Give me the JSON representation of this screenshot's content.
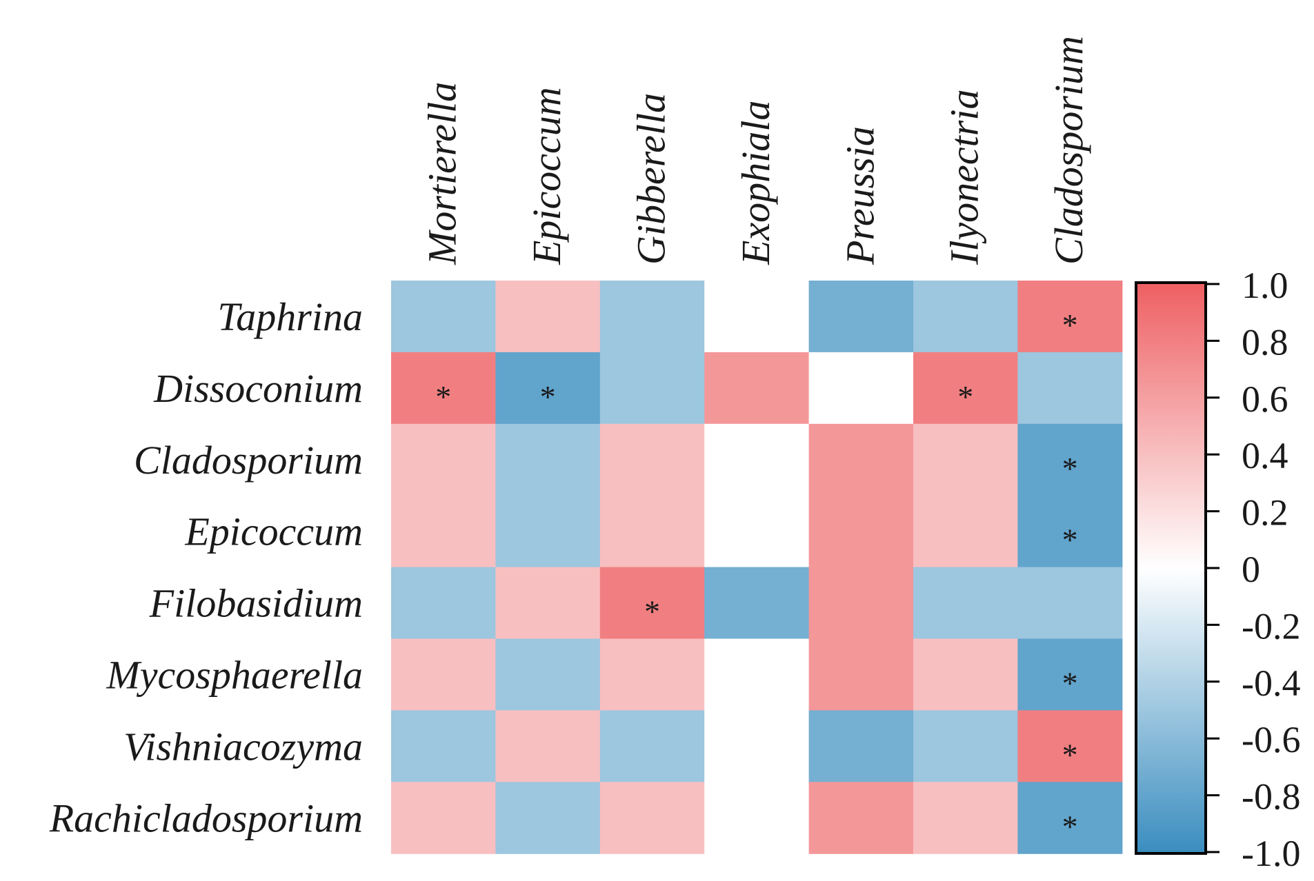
{
  "chart_data": {
    "type": "heatmap",
    "columns": [
      "Mortierella",
      "Epicoccum",
      "Gibberella",
      "Exophiala",
      "Preussia",
      "Ilyonectria",
      "Cladosporium"
    ],
    "rows": [
      "Taphrina",
      "Dissoconium",
      "Cladosporium",
      "Epicoccum",
      "Filobasidium",
      "Mycosphaerella",
      "Vishniacozyma",
      "Rachicladosporium"
    ],
    "values": [
      [
        -0.5,
        0.4,
        -0.5,
        0.0,
        -0.7,
        -0.5,
        0.8
      ],
      [
        0.8,
        -0.8,
        -0.5,
        0.65,
        0.0,
        0.8,
        -0.5
      ],
      [
        0.4,
        -0.5,
        0.4,
        0.0,
        0.65,
        0.4,
        -0.8
      ],
      [
        0.4,
        -0.5,
        0.4,
        0.0,
        0.65,
        0.4,
        -0.8
      ],
      [
        -0.5,
        0.4,
        0.8,
        -0.7,
        0.65,
        -0.5,
        -0.5
      ],
      [
        0.4,
        -0.5,
        0.4,
        0.0,
        0.65,
        0.4,
        -0.8
      ],
      [
        -0.5,
        0.4,
        -0.5,
        0.0,
        -0.7,
        -0.5,
        0.8
      ],
      [
        0.4,
        -0.5,
        0.4,
        0.0,
        0.65,
        0.4,
        -0.8
      ]
    ],
    "significance": [
      [
        false,
        false,
        false,
        false,
        false,
        false,
        true
      ],
      [
        true,
        true,
        false,
        false,
        false,
        true,
        false
      ],
      [
        false,
        false,
        false,
        false,
        false,
        false,
        true
      ],
      [
        false,
        false,
        false,
        false,
        false,
        false,
        true
      ],
      [
        false,
        false,
        true,
        false,
        false,
        false,
        false
      ],
      [
        false,
        false,
        false,
        false,
        false,
        false,
        true
      ],
      [
        false,
        false,
        false,
        false,
        false,
        false,
        true
      ],
      [
        false,
        false,
        false,
        false,
        false,
        false,
        true
      ]
    ],
    "significance_mark": "*",
    "colorbar": {
      "range": [
        -1.0,
        1.0
      ],
      "ticks": [
        "1.0",
        "0.8",
        "0.6",
        "0.4",
        "0.2",
        "0",
        "-0.2",
        "-0.4",
        "-0.6",
        "-0.8",
        "-1.0"
      ],
      "tick_values": [
        1.0,
        0.8,
        0.6,
        0.4,
        0.2,
        0,
        -0.2,
        -0.4,
        -0.6,
        -0.8,
        -1.0
      ],
      "colors": {
        "positive": "#ee5f62",
        "zero": "#ffffff",
        "negative": "#3a8dbf"
      },
      "placement": "right"
    },
    "title": "",
    "xlabel": "",
    "ylabel": ""
  }
}
